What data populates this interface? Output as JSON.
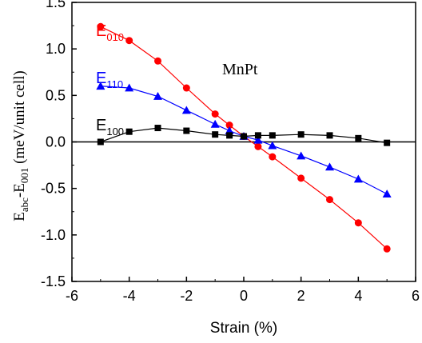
{
  "chart_data": {
    "type": "line",
    "title": "",
    "xlabel": "Strain (%)",
    "ylabel": {
      "parts": [
        "E",
        "abc",
        "-E",
        "001",
        " (meV/unit cell)"
      ]
    },
    "xlim": [
      -6,
      6
    ],
    "ylim": [
      -1.5,
      1.5
    ],
    "xticks": [
      -6,
      -4,
      -2,
      0,
      2,
      4,
      6
    ],
    "yticks": [
      -1.5,
      -1.0,
      -0.5,
      0.0,
      0.5,
      1.0,
      1.5
    ],
    "xtick_labels": [
      "-6",
      "-4",
      "-2",
      "0",
      "2",
      "4",
      "6"
    ],
    "ytick_labels": [
      "-1.5",
      "-1.0",
      "-0.5",
      "0.0",
      "0.5",
      "1.0",
      "1.5"
    ],
    "zero_line": true,
    "grid": false,
    "annotation": "MnPt",
    "series": [
      {
        "name": "E010",
        "label_main": "E",
        "label_sub": "010",
        "color": "#ff0000",
        "marker": "circle",
        "x": [
          -5,
          -4,
          -3,
          -2,
          -1,
          -0.5,
          0,
          0.5,
          1,
          2,
          3,
          4,
          5
        ],
        "y": [
          1.24,
          1.09,
          0.87,
          0.58,
          0.3,
          0.18,
          0.06,
          -0.05,
          -0.16,
          -0.39,
          -0.62,
          -0.87,
          -1.15
        ]
      },
      {
        "name": "E110",
        "label_main": "E",
        "label_sub": "110",
        "color": "#0000ff",
        "marker": "triangle",
        "x": [
          -5,
          -4,
          -3,
          -2,
          -1,
          -0.5,
          0,
          0.5,
          1,
          2,
          3,
          4,
          5
        ],
        "y": [
          0.6,
          0.58,
          0.49,
          0.34,
          0.19,
          0.12,
          0.06,
          0.02,
          -0.04,
          -0.15,
          -0.27,
          -0.4,
          -0.56
        ]
      },
      {
        "name": "E100",
        "label_main": "E",
        "label_sub": "100",
        "color": "#000000",
        "marker": "square",
        "x": [
          -5,
          -4,
          -3,
          -2,
          -1,
          -0.5,
          0,
          0.5,
          1,
          2,
          3,
          4,
          5
        ],
        "y": [
          0.0,
          0.11,
          0.15,
          0.12,
          0.08,
          0.07,
          0.06,
          0.07,
          0.07,
          0.08,
          0.07,
          0.04,
          -0.01
        ]
      }
    ]
  }
}
